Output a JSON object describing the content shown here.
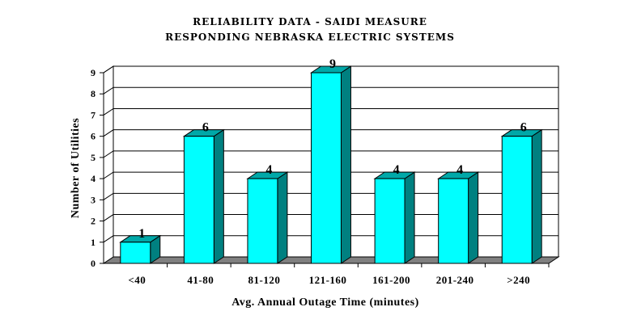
{
  "chart_data": {
    "type": "bar",
    "title": "RELIABILITY DATA - SAIDI MEASURE",
    "subtitle": "RESPONDING NEBRASKA ELECTRIC SYSTEMS",
    "xlabel": "Avg. Annual Outage Time (minutes)",
    "ylabel": "Number of Utilities",
    "categories": [
      "<40",
      "41-80",
      "81-120",
      "121-160",
      "161-200",
      "201-240",
      ">240"
    ],
    "values": [
      1,
      6,
      4,
      9,
      4,
      4,
      6
    ],
    "ylim": [
      0,
      9
    ],
    "yticks": [
      0,
      1,
      2,
      3,
      4,
      5,
      6,
      7,
      8,
      9
    ],
    "grid": true,
    "legend": "none",
    "colors": {
      "bar_front": "#00ffff",
      "bar_side": "#008080",
      "bar_top": "#00a8a8",
      "floor": "#808080",
      "grid": "#000000"
    }
  }
}
